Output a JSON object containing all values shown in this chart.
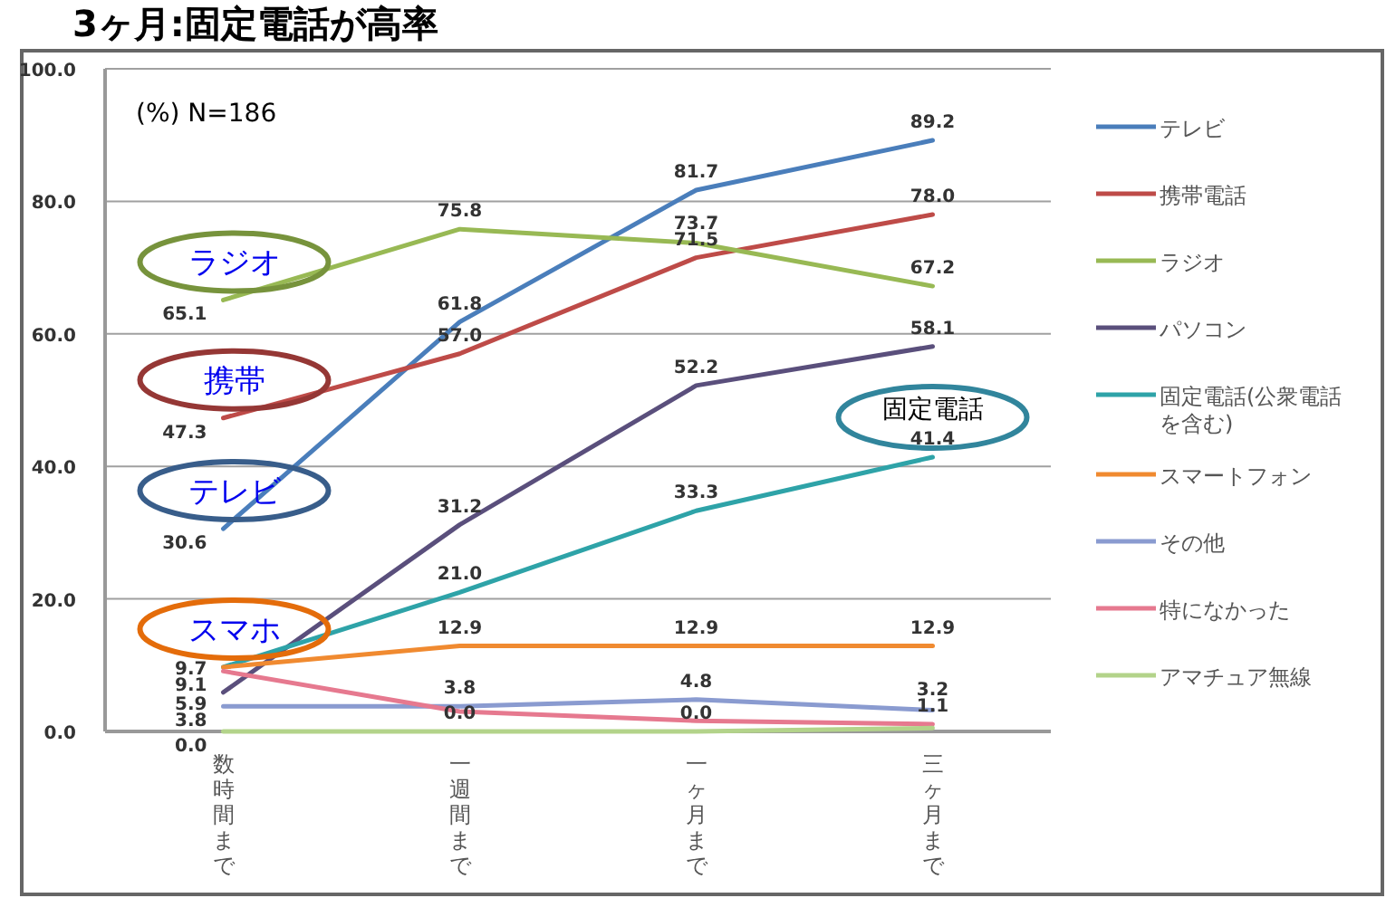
{
  "chart_data": {
    "type": "line",
    "title": "3ヶ月:固定電話が高率",
    "categories": [
      "数時間まで",
      "一週間まで",
      "一ヶ月まで",
      "三ヶ月まで"
    ],
    "ylim": [
      0,
      100
    ],
    "yticks": [
      {
        "value": 0,
        "label": "0.0"
      },
      {
        "value": 20,
        "label": "20.0"
      },
      {
        "value": 40,
        "label": "40.0"
      },
      {
        "value": 60,
        "label": "60.0"
      },
      {
        "value": 80,
        "label": "80.0"
      },
      {
        "value": 100,
        "label": "100.0"
      }
    ],
    "grid": "y",
    "legend": "right",
    "marker": "none",
    "line_style": "solid",
    "series": [
      {
        "name": "テレビ",
        "color": "#4a7ebb",
        "values": [
          30.6,
          61.8,
          81.7,
          89.2
        ],
        "value_labels": [
          "30.6",
          "61.8",
          "81.7",
          "89.2"
        ]
      },
      {
        "name": "携帯電話",
        "color": "#be4b48",
        "values": [
          47.3,
          57.0,
          71.5,
          78.0
        ],
        "value_labels": [
          "47.3",
          "57.0",
          "71.5",
          "78.0"
        ]
      },
      {
        "name": "ラジオ",
        "color": "#98b954",
        "values": [
          65.1,
          75.8,
          73.7,
          67.2
        ],
        "value_labels": [
          "65.1",
          "75.8",
          "73.7",
          "67.2"
        ]
      },
      {
        "name": "パソコン",
        "color": "#5a4f7c",
        "values": [
          5.9,
          31.2,
          52.2,
          58.1
        ],
        "value_labels": [
          "5.9",
          "31.2",
          "52.2",
          "58.1"
        ]
      },
      {
        "name": "固定電話(公衆電話を含む)",
        "color": "#2ea3a8",
        "values": [
          9.7,
          21.0,
          33.3,
          41.4
        ],
        "value_labels": [
          "9.7",
          "21.0",
          "33.3",
          "41.4"
        ]
      },
      {
        "name": "スマートフォン",
        "color": "#f08a30",
        "values": [
          9.7,
          12.9,
          12.9,
          12.9
        ],
        "value_labels": [
          null,
          "12.9",
          "12.9",
          "12.9"
        ]
      },
      {
        "name": "その他",
        "color": "#8a9bd0",
        "values": [
          3.8,
          3.8,
          4.8,
          3.2
        ],
        "value_labels": [
          "3.8",
          "3.8",
          "4.8",
          "3.2"
        ]
      },
      {
        "name": "特になかった",
        "color": "#e6798f",
        "values": [
          9.1,
          3.0,
          1.6,
          1.1
        ],
        "value_labels": [
          "9.1",
          null,
          null,
          "1.1"
        ]
      },
      {
        "name": "アマチュア無線",
        "color": "#b3d38a",
        "values": [
          0.0,
          0.0,
          0.0,
          0.5
        ],
        "value_labels": [
          "0.0",
          "0.0",
          "0.0",
          null
        ]
      }
    ],
    "annotations": [
      "(%) N=186",
      {
        "text": "ラジオ",
        "x": "数時間まで",
        "y": 65.1
      },
      {
        "text": "携帯",
        "x": "数時間まで",
        "y": 47.3
      },
      {
        "text": "テレビ",
        "x": "数時間まで",
        "y": 30.6
      },
      {
        "text": "スマホ",
        "x": "数時間まで",
        "y": 9.7
      },
      {
        "text": "固定電話",
        "x": "三ヶ月まで",
        "y": 41.4
      }
    ]
  }
}
